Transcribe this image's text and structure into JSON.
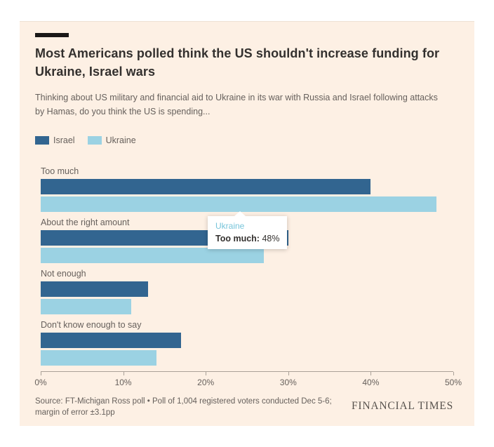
{
  "header": {
    "title": "Most Americans polled think the US shouldn't increase funding for Ukraine, Israel wars",
    "subtitle": "Thinking about US military and financial aid to Ukraine in its war with Russia and Israel following attacks by Hamas, do you think the US is spending...",
    "accent_color": "#1a1817"
  },
  "chart_data": {
    "type": "bar",
    "orientation": "horizontal",
    "title": "Most Americans polled think the US shouldn't increase funding for Ukraine, Israel wars",
    "categories": [
      "Too much",
      "About the right amount",
      "Not enough",
      "Don't know enough to say"
    ],
    "series": [
      {
        "name": "Israel",
        "color": "#326590",
        "values": [
          40,
          30,
          13,
          17
        ]
      },
      {
        "name": "Ukraine",
        "color": "#9bd2e3",
        "values": [
          48,
          27,
          11,
          14
        ]
      }
    ],
    "xlim": [
      0,
      50
    ],
    "x_tick_labels": [
      "0%",
      "10%",
      "20%",
      "30%",
      "40%",
      "50%"
    ],
    "unit": "percent",
    "grid": false,
    "legend_position": "top-left",
    "background_color": "#fdf0e4"
  },
  "tooltip": {
    "series": "Ukraine",
    "series_color": "#76c4da",
    "label": "Too much:",
    "value": "48%"
  },
  "footer": {
    "source": "Source: FT-Michigan Ross poll • Poll of 1,004 registered voters conducted Dec 5-6; margin of error ±3.1pp",
    "brand": "FINANCIAL TIMES"
  }
}
